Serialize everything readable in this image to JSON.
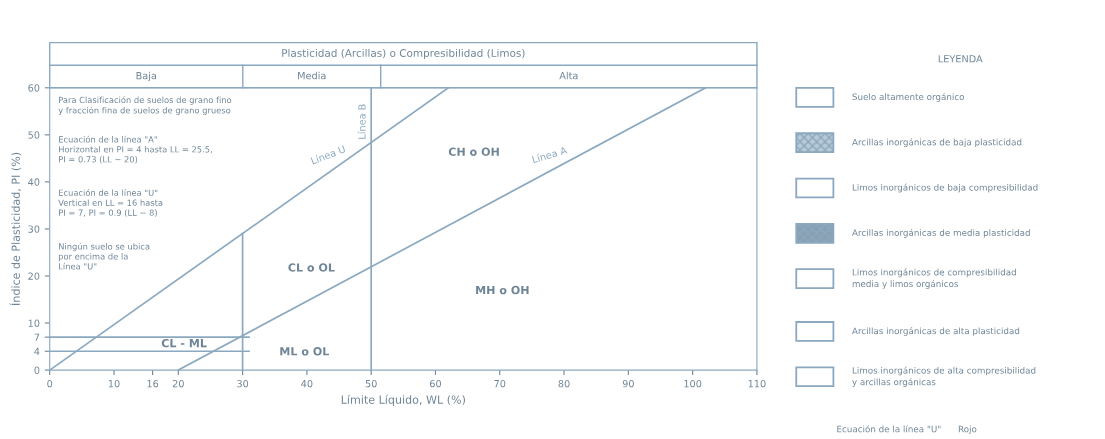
{
  "chart_data": [
    {
      "type": "line",
      "title": "Plasticidad (Arcillas) o Compresibilidad (Limos)",
      "xlabel": "Límite Líquido, WL (%)",
      "ylabel": "Índice de Plasticidad, PI (%)",
      "xlim": [
        0,
        110
      ],
      "xticks": [
        0,
        10,
        16,
        20,
        30,
        40,
        50,
        60,
        70,
        80,
        90,
        100,
        110
      ],
      "ylim": [
        0,
        60
      ],
      "yticks": [
        0,
        4,
        7,
        10,
        20,
        30,
        40,
        50,
        60
      ],
      "grid": false,
      "marker": "none",
      "line_style": "solid",
      "series": [
        {
          "name": "Línea U",
          "color": "#8aa8bf",
          "x": [
            0,
            62
          ],
          "values": [
            0,
            60
          ]
        },
        {
          "name": "Línea A",
          "color": "#8aa8bf",
          "x": [
            20,
            102
          ],
          "values": [
            0,
            60
          ]
        },
        {
          "name": "Línea B",
          "color": "#8aa8bf",
          "x": [
            50,
            50
          ],
          "values": [
            0,
            60
          ]
        },
        {
          "color": "#8aa8bf",
          "x": [
            30,
            30
          ],
          "values": [
            0,
            29
          ]
        },
        {
          "color": "#8aa8bf",
          "x": [
            0,
            31
          ],
          "values": [
            4,
            4
          ]
        },
        {
          "color": "#8aa8bf",
          "x": [
            0,
            31
          ],
          "values": [
            7,
            7
          ]
        }
      ],
      "annotations": [
        "Baja",
        "Media",
        "Alta",
        "Para Clasificación de suelos de grano fino\ny fracción fina de suelos de grano grueso",
        "Ecuación de la línea \"A\"\nHorizontal en PI = 4 hasta LL = 25.5,\nPI = 0.73 (LL − 20)",
        "Ecuación de la línea \"U\"\nVertical en LL = 16 hasta\nPI = 7, PI = 0.9 (LL − 8)",
        "Ningún suelo se ubica\npor encima de la\nLínea \"U\"",
        "CH o OH",
        "CL o OL",
        "MH o OH",
        "ML o OL",
        "CL - ML"
      ]
    },
    {
      "type": "other",
      "title": "LEYENDA",
      "annotations": [
        "Suelo altamente orgánico",
        "Arcillas inorgánicas de baja plasticidad",
        "Limos inorgánicos de baja compresibilidad",
        "Arcillas inorgánicas de media plasticidad",
        "Limos inorgánicos de compresibilidad\nmedia y limos orgánicos",
        "Arcillas inorgánicas de alta plasticidad",
        "Limos inorgánicos de alta compresibilidad\ny arcillas orgánicas",
        "Ecuación de la línea \"U\"      Rojo"
      ]
    }
  ]
}
